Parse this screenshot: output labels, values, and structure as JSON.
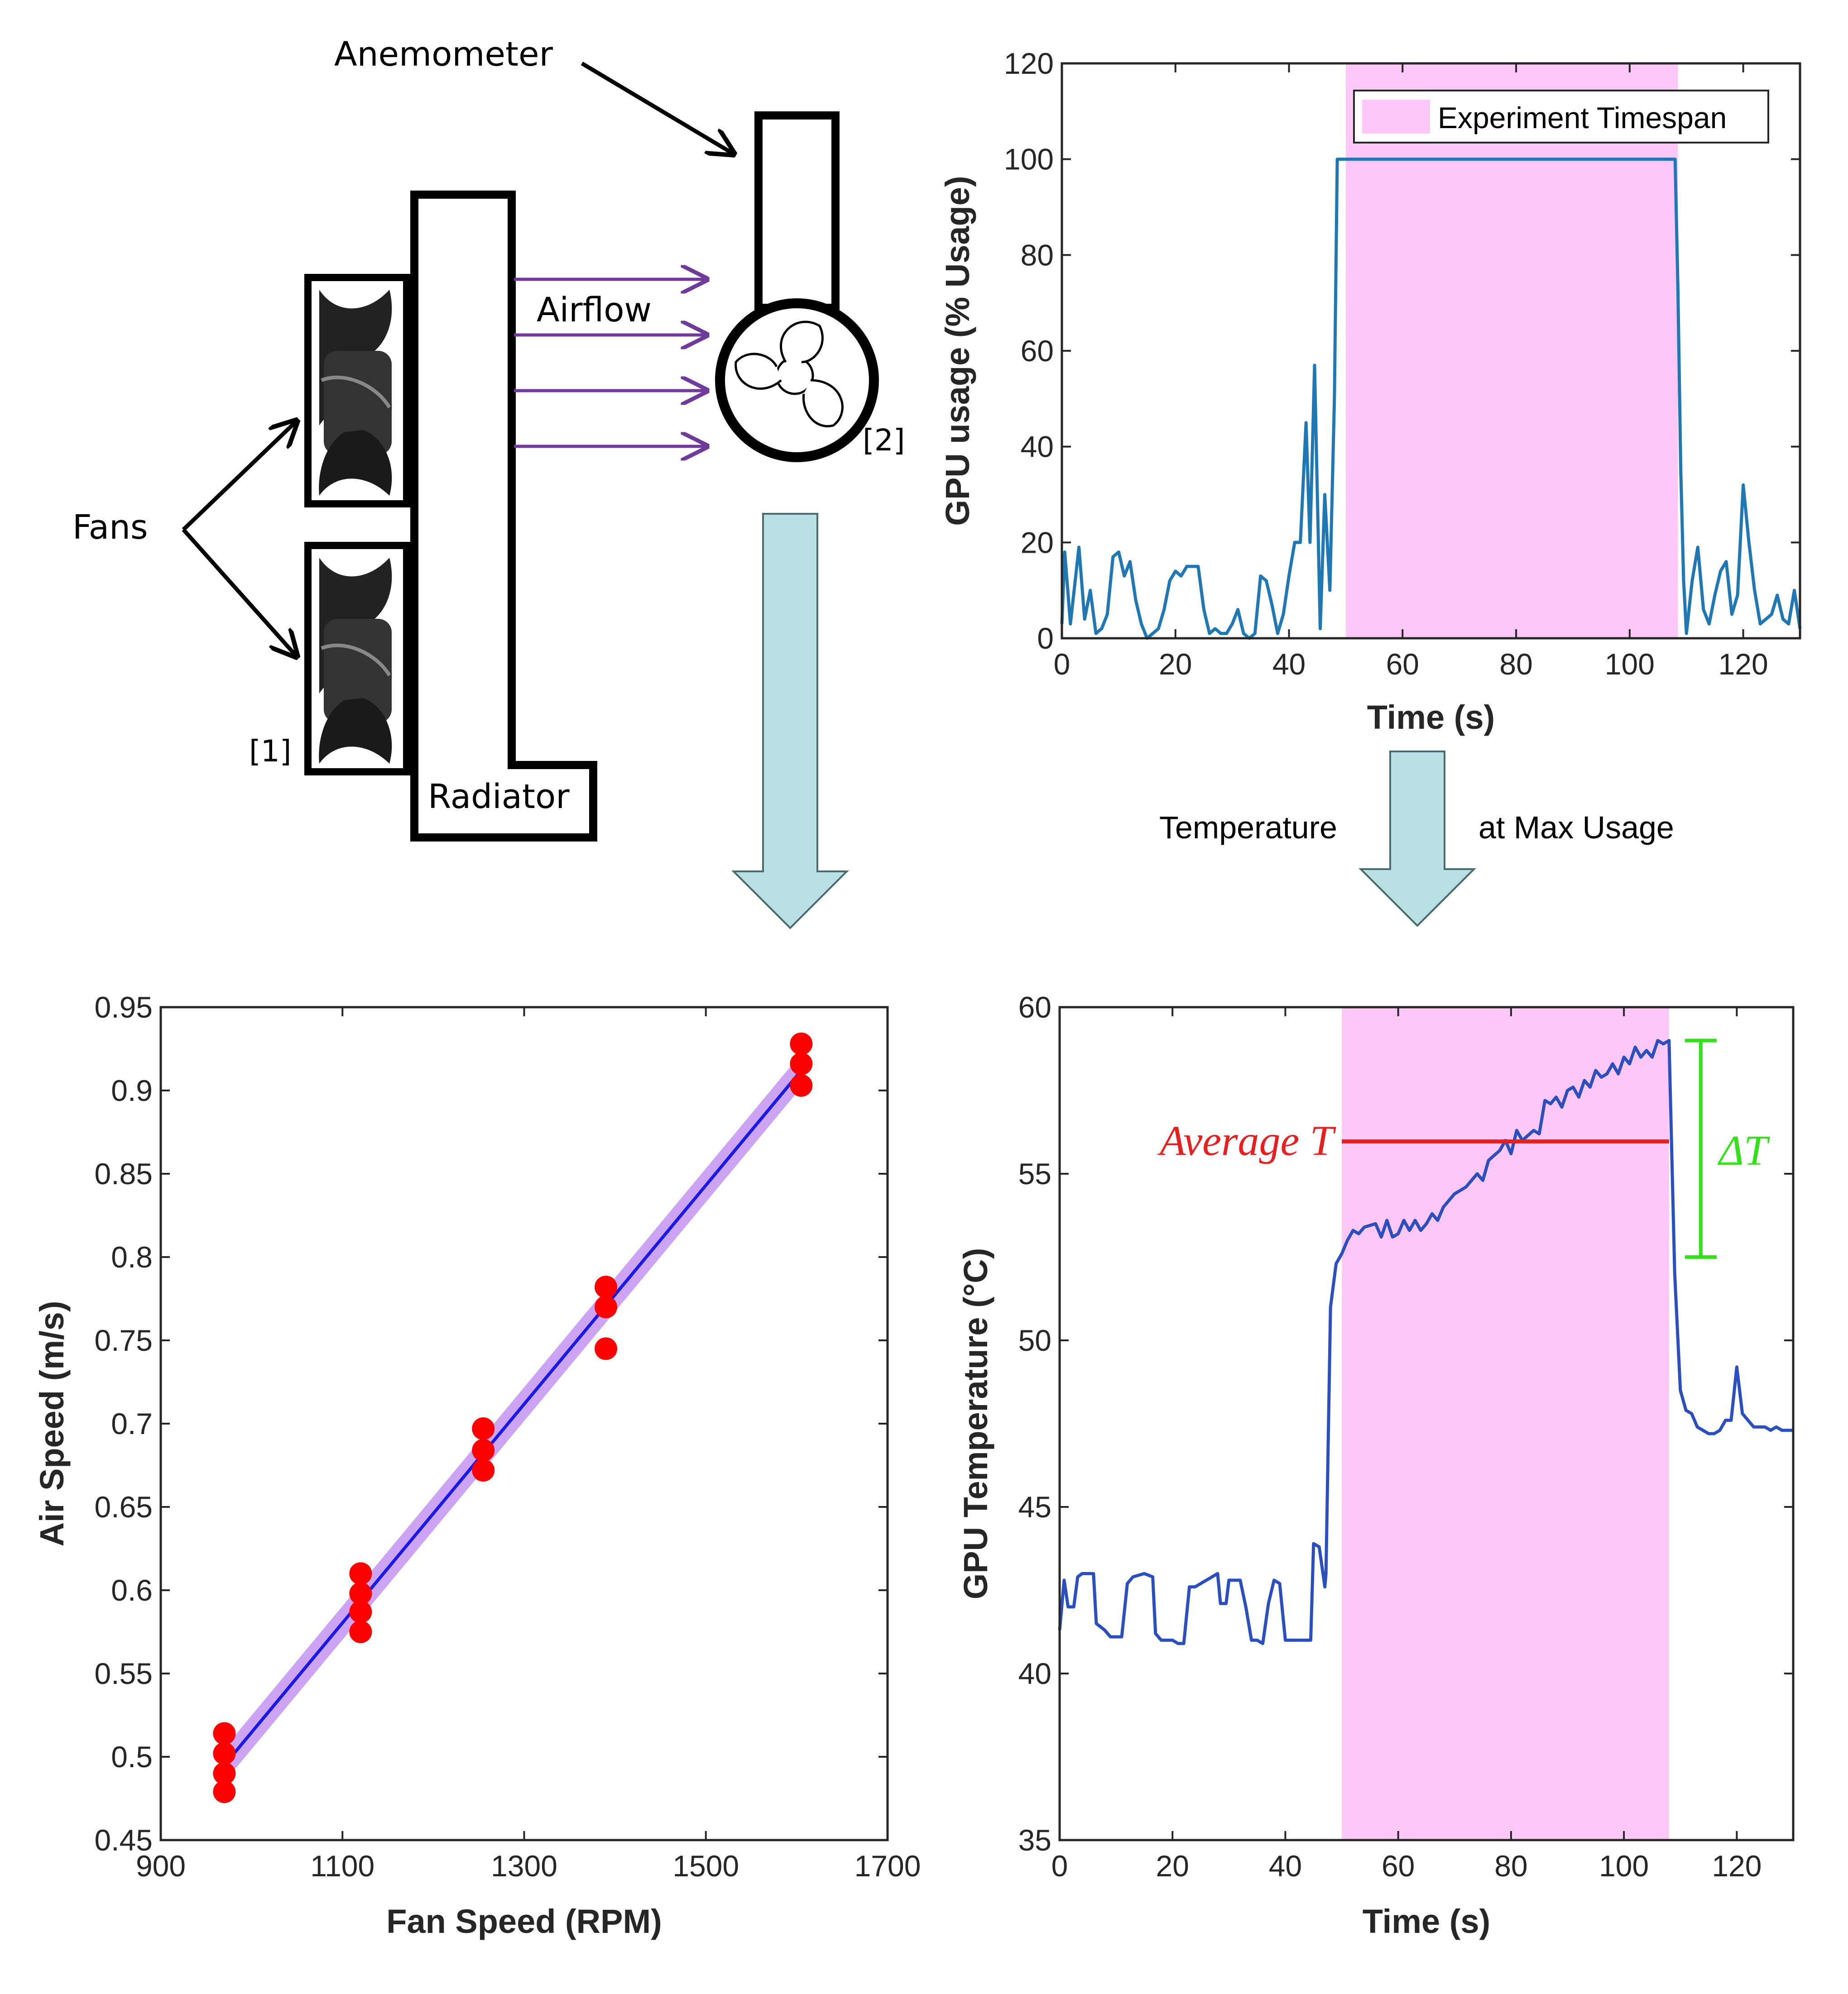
{
  "colors": {
    "axis": "#262626",
    "line_blue": "#1f77b4",
    "line_blue_dark": "#2b4fbf",
    "shade_pink": "#fdc8f7",
    "fit_line": "#1a1ae6",
    "fit_band": "#c79bf2",
    "dot_red": "#ff0000",
    "purple_arrow": "#6f3b9a",
    "down_arrow_fill": "#b9e0e2",
    "avg_red": "#e62020",
    "delta_green": "#33e01a"
  },
  "diagram": {
    "anemometer_label": "Anemometer",
    "fans_label": "Fans",
    "airflow_label": "Airflow",
    "radiator_label": "Radiator",
    "ref1": "[1]",
    "ref2": "[2]",
    "fan_icon": "fan-icon",
    "anemometer_icon": "anemometer-fan-icon"
  },
  "arrow_caption": {
    "left": "Temperature",
    "right": "at Max Usage"
  },
  "chart_data": [
    {
      "id": "gpu_usage",
      "type": "line",
      "xlabel": "Time (s)",
      "ylabel": "GPU usage (% Usage)",
      "xlim": [
        0,
        130
      ],
      "ylim": [
        0,
        120
      ],
      "xticks": [
        0,
        20,
        40,
        60,
        80,
        100,
        120
      ],
      "yticks": [
        0,
        20,
        40,
        60,
        80,
        100,
        120
      ],
      "legend": "Experiment Timespan",
      "legend_position": "top-right",
      "shade_x": [
        50,
        108.5
      ],
      "x": [
        0,
        1,
        2,
        3,
        4,
        5,
        6,
        7,
        8,
        9,
        10,
        11,
        12,
        13,
        14,
        15,
        16,
        17,
        18,
        19,
        20,
        21,
        22,
        23,
        24,
        25,
        26,
        27,
        28,
        29,
        30,
        31,
        32,
        33,
        34,
        35,
        36,
        37,
        38,
        39,
        40,
        41,
        42,
        43,
        44,
        45,
        46,
        47,
        48,
        49,
        50,
        108,
        108.5,
        109,
        110,
        111,
        112,
        113,
        114,
        115,
        116,
        117,
        118,
        119,
        120,
        121,
        122,
        123,
        124,
        125,
        126,
        127,
        128,
        129,
        130
      ],
      "y": [
        3,
        18,
        3,
        19,
        4,
        10,
        1,
        2,
        5,
        17,
        18,
        13,
        17,
        8,
        3,
        0,
        1,
        2,
        6,
        12,
        13,
        12,
        15,
        15,
        14,
        6,
        1,
        2,
        1,
        1,
        4,
        6,
        1,
        0,
        1,
        13,
        12,
        7,
        1,
        5,
        13,
        20,
        45,
        20,
        57,
        2,
        100,
        100,
        100,
        73,
        35,
        12,
        1,
        12,
        19,
        6,
        3,
        9,
        14,
        16,
        5,
        9,
        32,
        20,
        10,
        3,
        4,
        5,
        9,
        4,
        3,
        2,
        10,
        3,
        2
      ],
      "x_note": "rise at 48 to 50 then plateau at 100 until 108",
      "series_points": [
        [
          0,
          3
        ],
        [
          0.5,
          18
        ],
        [
          1.5,
          3
        ],
        [
          3,
          19
        ],
        [
          4,
          4
        ],
        [
          5,
          10
        ],
        [
          6,
          1
        ],
        [
          7,
          2
        ],
        [
          8,
          5
        ],
        [
          9,
          17
        ],
        [
          10,
          18
        ],
        [
          11,
          13
        ],
        [
          12,
          16
        ],
        [
          13,
          8
        ],
        [
          14,
          3
        ],
        [
          15,
          0
        ],
        [
          16,
          1
        ],
        [
          17,
          2
        ],
        [
          18,
          6
        ],
        [
          19,
          12
        ],
        [
          20,
          14
        ],
        [
          21,
          13
        ],
        [
          22,
          15
        ],
        [
          24,
          15
        ],
        [
          25,
          6
        ],
        [
          26,
          1
        ],
        [
          27,
          2
        ],
        [
          28,
          1
        ],
        [
          29,
          1
        ],
        [
          30,
          3
        ],
        [
          31,
          6
        ],
        [
          32,
          1
        ],
        [
          33,
          0
        ],
        [
          34,
          1
        ],
        [
          35,
          13
        ],
        [
          36,
          12
        ],
        [
          37,
          7
        ],
        [
          38,
          1
        ],
        [
          39,
          5
        ],
        [
          40,
          13
        ],
        [
          41,
          20
        ],
        [
          42,
          20
        ],
        [
          43,
          45
        ],
        [
          43.7,
          20
        ],
        [
          44.5,
          57
        ],
        [
          45.5,
          2
        ],
        [
          46.3,
          30
        ],
        [
          47.2,
          10
        ],
        [
          48,
          50
        ],
        [
          48.5,
          100
        ],
        [
          108,
          100
        ],
        [
          108.5,
          73
        ],
        [
          109,
          35
        ],
        [
          109.5,
          12
        ],
        [
          110,
          1
        ],
        [
          111,
          12
        ],
        [
          112,
          19
        ],
        [
          113,
          6
        ],
        [
          114,
          3
        ],
        [
          115,
          9
        ],
        [
          116,
          14
        ],
        [
          117,
          16
        ],
        [
          118,
          5
        ],
        [
          119,
          9
        ],
        [
          120,
          32
        ],
        [
          121,
          20
        ],
        [
          122,
          10
        ],
        [
          123,
          3
        ],
        [
          124,
          4
        ],
        [
          125,
          5
        ],
        [
          126,
          9
        ],
        [
          127,
          4
        ],
        [
          128,
          3
        ],
        [
          129,
          10
        ],
        [
          130,
          2
        ]
      ]
    },
    {
      "id": "air_speed",
      "type": "scatter",
      "xlabel": "Fan Speed (RPM)",
      "ylabel": "Air Speed (m/s)",
      "xlim": [
        900,
        1700
      ],
      "ylim": [
        0.45,
        0.95
      ],
      "xticks": [
        900,
        1100,
        1300,
        1500,
        1700
      ],
      "xtick_labels": [
        "900",
        "1100",
        "1300",
        "1500",
        "1700"
      ],
      "yticks": [
        0.45,
        0.5,
        0.55,
        0.6,
        0.65,
        0.7,
        0.75,
        0.8,
        0.85,
        0.9,
        0.95
      ],
      "ytick_labels": [
        "0.45",
        "0.5",
        "0.55",
        "0.6",
        "0.65",
        "0.7",
        "0.75",
        "0.8",
        "0.85",
        "0.9",
        "0.95"
      ],
      "points": [
        [
          970,
          0.514
        ],
        [
          970,
          0.502
        ],
        [
          970,
          0.49
        ],
        [
          970,
          0.479
        ],
        [
          1120,
          0.61
        ],
        [
          1120,
          0.598
        ],
        [
          1120,
          0.587
        ],
        [
          1120,
          0.575
        ],
        [
          1255,
          0.697
        ],
        [
          1255,
          0.684
        ],
        [
          1255,
          0.672
        ],
        [
          1390,
          0.782
        ],
        [
          1390,
          0.77
        ],
        [
          1390,
          0.745
        ],
        [
          1605,
          0.928
        ],
        [
          1605,
          0.916
        ],
        [
          1605,
          0.903
        ]
      ],
      "fit_line": [
        [
          970,
          0.495
        ],
        [
          1605,
          0.912
        ]
      ],
      "fit_band_halfwidth": 0.008
    },
    {
      "id": "gpu_temp",
      "type": "line",
      "xlabel": "Time (s)",
      "ylabel": "GPU Temperature (°C)",
      "xlim": [
        0,
        130
      ],
      "ylim": [
        35,
        60
      ],
      "xticks": [
        0,
        20,
        40,
        60,
        80,
        100,
        120
      ],
      "yticks": [
        35,
        40,
        45,
        50,
        55,
        60
      ],
      "shade_x": [
        50,
        108
      ],
      "series_points": [
        [
          0,
          41.3
        ],
        [
          0.8,
          42.8
        ],
        [
          1.5,
          42.0
        ],
        [
          2.5,
          42.0
        ],
        [
          3.2,
          42.9
        ],
        [
          4,
          43.0
        ],
        [
          6,
          43.0
        ],
        [
          6.5,
          41.5
        ],
        [
          8,
          41.3
        ],
        [
          9,
          41.1
        ],
        [
          11,
          41.1
        ],
        [
          12,
          42.7
        ],
        [
          13,
          42.9
        ],
        [
          15,
          43.0
        ],
        [
          16.5,
          42.9
        ],
        [
          17,
          41.2
        ],
        [
          18,
          41.0
        ],
        [
          20,
          41.0
        ],
        [
          21,
          40.9
        ],
        [
          22,
          40.9
        ],
        [
          23,
          42.6
        ],
        [
          24,
          42.6
        ],
        [
          26,
          42.8
        ],
        [
          28,
          43.0
        ],
        [
          28.5,
          42.1
        ],
        [
          29.5,
          42.1
        ],
        [
          30,
          42.8
        ],
        [
          32,
          42.8
        ],
        [
          33,
          42.0
        ],
        [
          34,
          41.0
        ],
        [
          35,
          41.0
        ],
        [
          36,
          40.9
        ],
        [
          37,
          42.1
        ],
        [
          38,
          42.8
        ],
        [
          39,
          42.7
        ],
        [
          40,
          41.0
        ],
        [
          41,
          41.0
        ],
        [
          43,
          41.0
        ],
        [
          44.5,
          41.0
        ],
        [
          45,
          43.9
        ],
        [
          46,
          43.8
        ],
        [
          47,
          42.6
        ],
        [
          47.2,
          43.0
        ],
        [
          48,
          51.0
        ],
        [
          49,
          52.3
        ],
        [
          50,
          52.6
        ],
        [
          51,
          53.0
        ],
        [
          52,
          53.3
        ],
        [
          53,
          53.2
        ],
        [
          54,
          53.4
        ],
        [
          56,
          53.5
        ],
        [
          57,
          53.1
        ],
        [
          58,
          53.6
        ],
        [
          59,
          53.1
        ],
        [
          60,
          53.2
        ],
        [
          61,
          53.6
        ],
        [
          62,
          53.3
        ],
        [
          63,
          53.6
        ],
        [
          64,
          53.3
        ],
        [
          65,
          53.5
        ],
        [
          66,
          53.8
        ],
        [
          67,
          53.6
        ],
        [
          68,
          54.0
        ],
        [
          69,
          54.2
        ],
        [
          70,
          54.4
        ],
        [
          72,
          54.6
        ],
        [
          74,
          55.0
        ],
        [
          75,
          54.8
        ],
        [
          76,
          55.4
        ],
        [
          78,
          55.7
        ],
        [
          79,
          56.0
        ],
        [
          80,
          55.6
        ],
        [
          81,
          56.3
        ],
        [
          82,
          56.0
        ],
        [
          84,
          56.3
        ],
        [
          85,
          56.2
        ],
        [
          86,
          57.2
        ],
        [
          87,
          57.1
        ],
        [
          88,
          57.3
        ],
        [
          89,
          57.0
        ],
        [
          90,
          57.5
        ],
        [
          91,
          57.6
        ],
        [
          92,
          57.3
        ],
        [
          93,
          57.8
        ],
        [
          94,
          57.6
        ],
        [
          95,
          58.1
        ],
        [
          96,
          57.9
        ],
        [
          97,
          58.0
        ],
        [
          98,
          58.3
        ],
        [
          99,
          58.0
        ],
        [
          100,
          58.5
        ],
        [
          101,
          58.3
        ],
        [
          102,
          58.8
        ],
        [
          103,
          58.5
        ],
        [
          104,
          58.7
        ],
        [
          105,
          58.5
        ],
        [
          106,
          59.0
        ],
        [
          107,
          58.9
        ],
        [
          108,
          59.0
        ],
        [
          109,
          52.0
        ],
        [
          110,
          48.5
        ],
        [
          111,
          47.9
        ],
        [
          112,
          47.8
        ],
        [
          113,
          47.4
        ],
        [
          114,
          47.3
        ],
        [
          115,
          47.2
        ],
        [
          116,
          47.2
        ],
        [
          117,
          47.3
        ],
        [
          118,
          47.6
        ],
        [
          119,
          47.6
        ],
        [
          120,
          49.2
        ],
        [
          121,
          47.8
        ],
        [
          122,
          47.6
        ],
        [
          123,
          47.4
        ],
        [
          124,
          47.4
        ],
        [
          125,
          47.4
        ],
        [
          126,
          47.3
        ],
        [
          127,
          47.4
        ],
        [
          128,
          47.3
        ],
        [
          129,
          47.3
        ],
        [
          130,
          47.3
        ]
      ],
      "average_label": "Average T",
      "average_value": 55.97,
      "average_x": [
        50,
        108
      ],
      "delta_label": "ΔT",
      "delta_range": [
        52.5,
        59.0
      ]
    }
  ]
}
